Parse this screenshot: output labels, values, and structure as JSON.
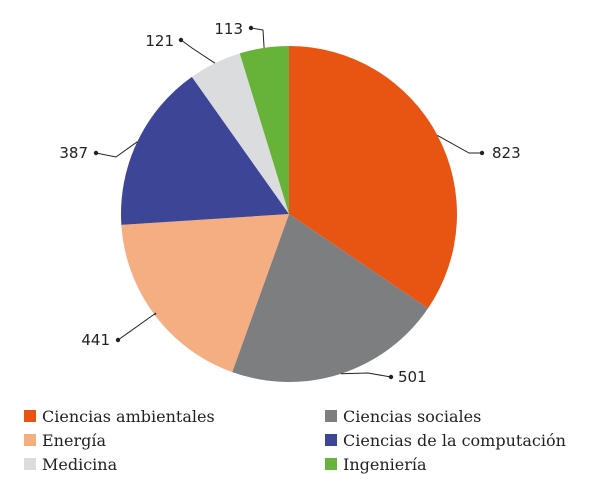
{
  "chart_data": {
    "type": "pie",
    "title": "",
    "slices": [
      {
        "label": "Ciencias ambientales",
        "value": 823,
        "color": "#e85512"
      },
      {
        "label": "Ciencias sociales",
        "value": 501,
        "color": "#7d7e80"
      },
      {
        "label": "Energía",
        "value": 441,
        "color": "#f4ae82"
      },
      {
        "label": "Ciencias de la computación",
        "value": 387,
        "color": "#3d4596"
      },
      {
        "label": "Medicina",
        "value": 121,
        "color": "#dbdcdd"
      },
      {
        "label": "Ingeniería",
        "value": 113,
        "color": "#67b33a"
      }
    ],
    "legend_placement": "bottom",
    "data_labels_position": "outside with leader lines"
  }
}
